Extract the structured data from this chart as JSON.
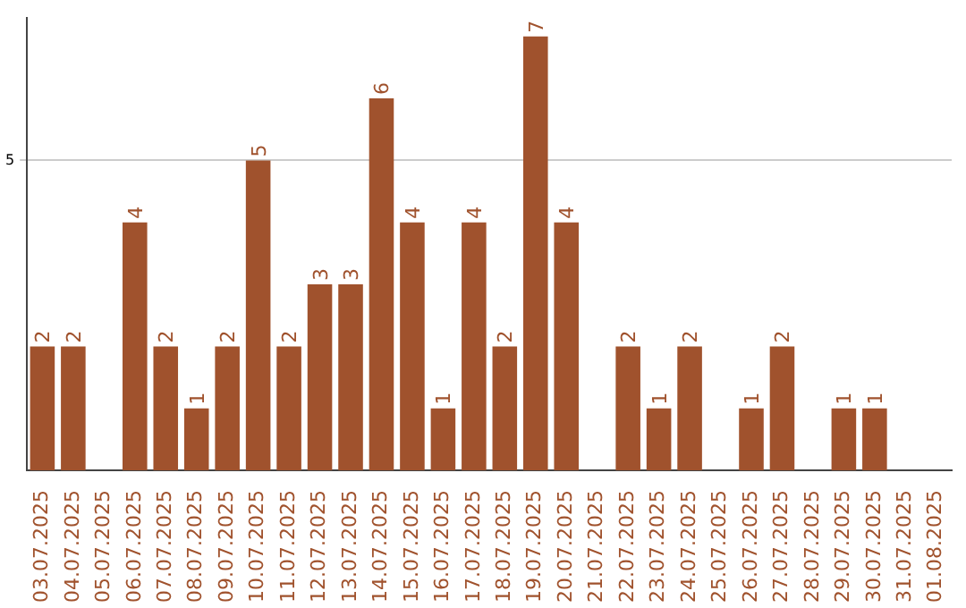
{
  "chart_data": {
    "type": "bar",
    "categories": [
      "03.07.2025",
      "04.07.2025",
      "05.07.2025",
      "06.07.2025",
      "07.07.2025",
      "08.07.2025",
      "09.07.2025",
      "10.07.2025",
      "11.07.2025",
      "12.07.2025",
      "13.07.2025",
      "14.07.2025",
      "15.07.2025",
      "16.07.2025",
      "17.07.2025",
      "18.07.2025",
      "19.07.2025",
      "20.07.2025",
      "21.07.2025",
      "22.07.2025",
      "23.07.2025",
      "24.07.2025",
      "25.07.2025",
      "26.07.2025",
      "27.07.2025",
      "28.07.2025",
      "29.07.2025",
      "30.07.2025",
      "31.07.2025",
      "01.08.2025"
    ],
    "values": [
      2,
      2,
      null,
      4,
      2,
      1,
      2,
      5,
      2,
      3,
      3,
      6,
      4,
      1,
      4,
      2,
      7,
      4,
      null,
      2,
      1,
      2,
      null,
      1,
      2,
      null,
      1,
      1,
      null,
      null
    ],
    "color": "#a0522d",
    "ylim": [
      0,
      7.3
    ],
    "yticks": [
      5
    ],
    "grid": "y",
    "data_labels": true
  }
}
